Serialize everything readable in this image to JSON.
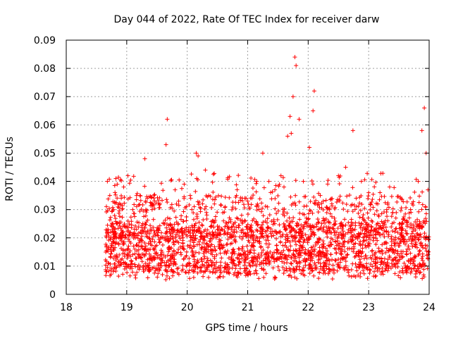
{
  "chart_data": {
    "type": "scatter",
    "title": "Day 044 of 2022, Rate Of TEC Index for receiver darw",
    "xlabel": "GPS time / hours",
    "ylabel": "ROTI / TECUs",
    "xlim": [
      18,
      24
    ],
    "ylim": [
      0,
      0.09
    ],
    "x_ticks": [
      "18",
      "19",
      "20",
      "21",
      "22",
      "23",
      "24"
    ],
    "y_ticks": [
      "0",
      "0.01",
      "0.02",
      "0.03",
      "0.04",
      "0.05",
      "0.06",
      "0.07",
      "0.08",
      "0.09"
    ],
    "grid": true,
    "marker": "+",
    "color": "#ff0000",
    "series": [
      {
        "name": "ROTI",
        "x": [
          18.68,
          18.72,
          18.78,
          18.82,
          18.88,
          18.95,
          19.02,
          19.1,
          19.22,
          19.3,
          19.42,
          19.55,
          19.65,
          19.67,
          19.8,
          19.95,
          20.05,
          20.15,
          20.18,
          20.3,
          20.45,
          20.6,
          20.75,
          20.9,
          21.0,
          21.15,
          21.25,
          21.35,
          21.45,
          21.55,
          21.6,
          21.66,
          21.7,
          21.72,
          21.75,
          21.78,
          21.8,
          21.85,
          21.92,
          22.02,
          22.08,
          22.1,
          22.2,
          22.35,
          22.5,
          22.62,
          22.74,
          22.88,
          23.0,
          23.15,
          23.3,
          23.45,
          23.55,
          23.7,
          23.82,
          23.88,
          23.92,
          23.95,
          23.98
        ],
        "y": [
          0.04,
          0.035,
          0.03,
          0.041,
          0.025,
          0.038,
          0.042,
          0.03,
          0.035,
          0.048,
          0.03,
          0.032,
          0.053,
          0.062,
          0.037,
          0.039,
          0.035,
          0.05,
          0.049,
          0.044,
          0.032,
          0.026,
          0.024,
          0.028,
          0.033,
          0.04,
          0.05,
          0.04,
          0.037,
          0.042,
          0.038,
          0.056,
          0.063,
          0.057,
          0.07,
          0.084,
          0.081,
          0.062,
          0.04,
          0.052,
          0.065,
          0.072,
          0.035,
          0.03,
          0.042,
          0.045,
          0.058,
          0.04,
          0.036,
          0.032,
          0.03,
          0.027,
          0.025,
          0.029,
          0.04,
          0.058,
          0.066,
          0.05,
          0.037
        ]
      }
    ]
  }
}
